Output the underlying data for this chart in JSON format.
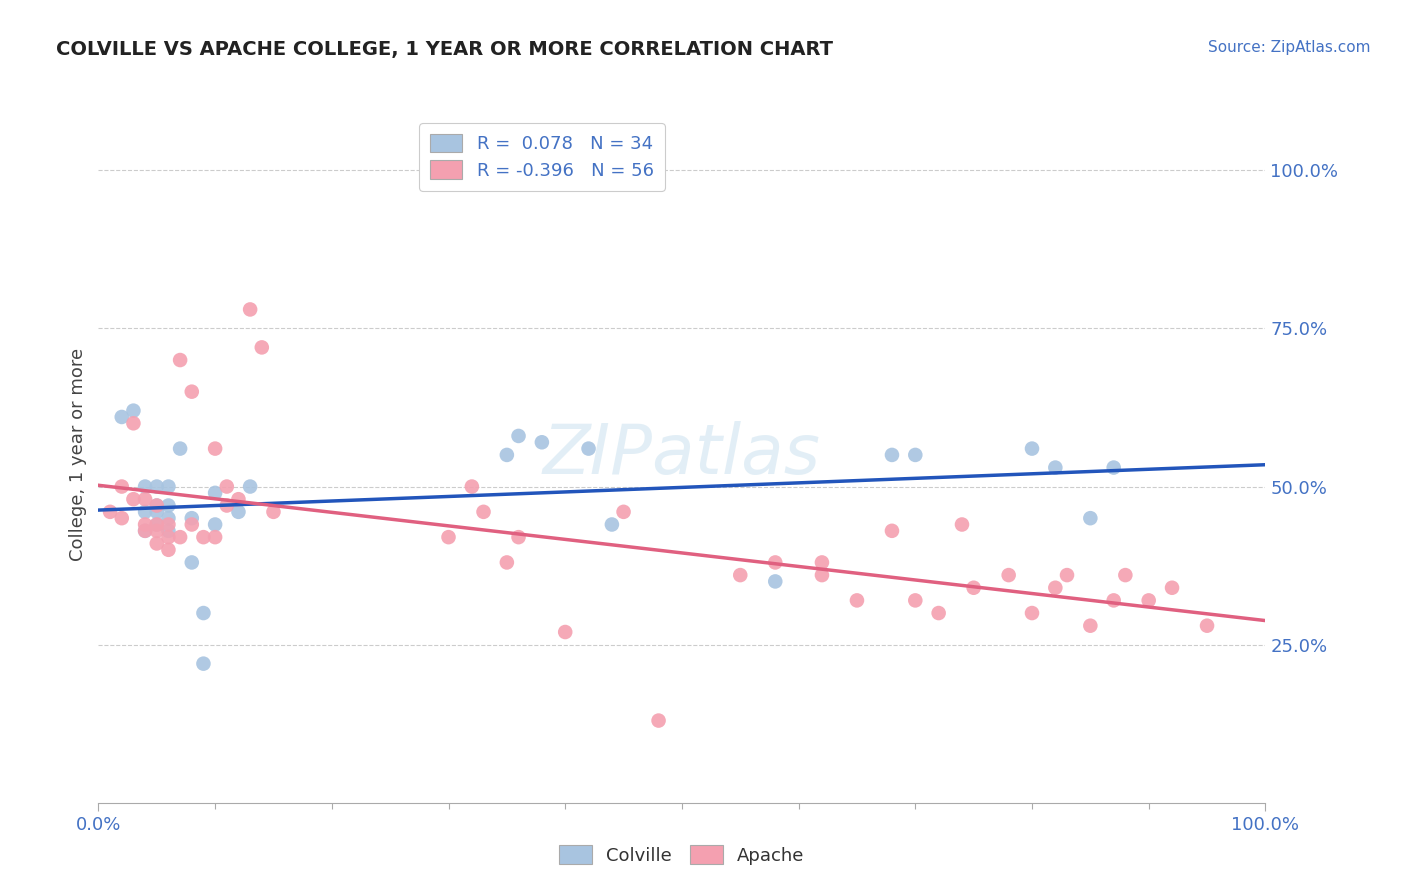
{
  "title": "COLVILLE VS APACHE COLLEGE, 1 YEAR OR MORE CORRELATION CHART",
  "source_text": "Source: ZipAtlas.com",
  "ylabel": "College, 1 year or more",
  "xlim": [
    0.0,
    1.0
  ],
  "ylim": [
    0.0,
    1.1
  ],
  "ytick_labels": [
    "25.0%",
    "50.0%",
    "75.0%",
    "100.0%"
  ],
  "ytick_positions": [
    0.25,
    0.5,
    0.75,
    1.0
  ],
  "grid_color": "#cccccc",
  "background_color": "#ffffff",
  "colville_color": "#a8c4e0",
  "apache_color": "#f4a0b0",
  "colville_line_color": "#2255bb",
  "apache_line_color": "#e06080",
  "colville_R": 0.078,
  "colville_N": 34,
  "apache_R": -0.396,
  "apache_N": 56,
  "watermark": "ZIPatlas",
  "right_tick_color": "#4472c4",
  "colville_x": [
    0.02,
    0.03,
    0.04,
    0.04,
    0.04,
    0.05,
    0.05,
    0.05,
    0.05,
    0.06,
    0.06,
    0.06,
    0.06,
    0.07,
    0.08,
    0.08,
    0.09,
    0.09,
    0.1,
    0.1,
    0.12,
    0.13,
    0.35,
    0.36,
    0.38,
    0.42,
    0.44,
    0.58,
    0.68,
    0.7,
    0.8,
    0.82,
    0.85,
    0.87
  ],
  "colville_y": [
    0.61,
    0.62,
    0.43,
    0.46,
    0.5,
    0.44,
    0.46,
    0.47,
    0.5,
    0.43,
    0.45,
    0.47,
    0.5,
    0.56,
    0.38,
    0.45,
    0.22,
    0.3,
    0.44,
    0.49,
    0.46,
    0.5,
    0.55,
    0.58,
    0.57,
    0.56,
    0.44,
    0.35,
    0.55,
    0.55,
    0.56,
    0.53,
    0.45,
    0.53
  ],
  "apache_x": [
    0.01,
    0.02,
    0.02,
    0.03,
    0.03,
    0.04,
    0.04,
    0.04,
    0.05,
    0.05,
    0.05,
    0.05,
    0.06,
    0.06,
    0.06,
    0.07,
    0.07,
    0.08,
    0.08,
    0.09,
    0.1,
    0.1,
    0.11,
    0.11,
    0.12,
    0.13,
    0.14,
    0.15,
    0.3,
    0.32,
    0.33,
    0.35,
    0.36,
    0.4,
    0.45,
    0.48,
    0.55,
    0.58,
    0.62,
    0.62,
    0.65,
    0.68,
    0.7,
    0.72,
    0.74,
    0.75,
    0.78,
    0.8,
    0.82,
    0.83,
    0.85,
    0.87,
    0.88,
    0.9,
    0.92,
    0.95
  ],
  "apache_y": [
    0.46,
    0.45,
    0.5,
    0.48,
    0.6,
    0.43,
    0.44,
    0.48,
    0.41,
    0.43,
    0.44,
    0.47,
    0.4,
    0.42,
    0.44,
    0.42,
    0.7,
    0.44,
    0.65,
    0.42,
    0.42,
    0.56,
    0.47,
    0.5,
    0.48,
    0.78,
    0.72,
    0.46,
    0.42,
    0.5,
    0.46,
    0.38,
    0.42,
    0.27,
    0.46,
    0.13,
    0.36,
    0.38,
    0.36,
    0.38,
    0.32,
    0.43,
    0.32,
    0.3,
    0.44,
    0.34,
    0.36,
    0.3,
    0.34,
    0.36,
    0.28,
    0.32,
    0.36,
    0.32,
    0.34,
    0.28
  ]
}
